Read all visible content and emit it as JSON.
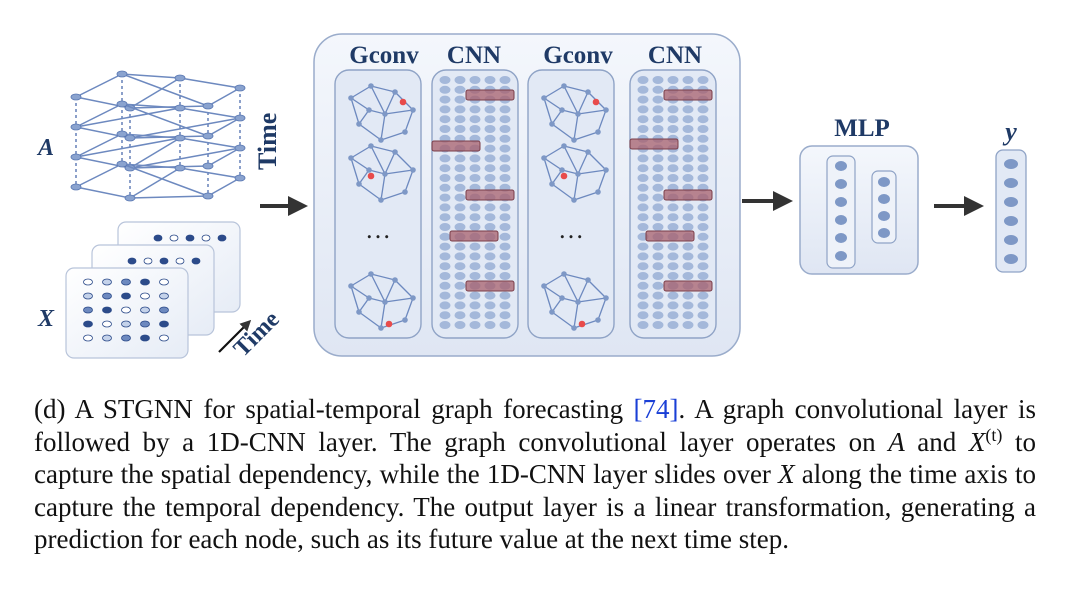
{
  "labels": {
    "a": "A",
    "x": "X",
    "time_top": "Time",
    "time_bottom": "Time",
    "gconv": "Gconv",
    "cnn": "CNN",
    "mlp": "MLP",
    "y": "y",
    "ellipsis": "…"
  },
  "caption": {
    "p1": "(d) A STGNN for spatial-temporal graph forecasting ",
    "cite": "[74]",
    "p2": ". A graph convolutional layer is followed by a 1D-CNN layer. The graph convolutional layer operates on ",
    "var_a": "A",
    "p3": " and ",
    "var_x": "X",
    "sup_t": "(t)",
    "p4": " to capture the spatial dependency, while the 1D-CNN layer slides over ",
    "var_x2": "X",
    "p5": " along the time axis to capture the temporal dependency. The output layer is a linear transformation, generating a prediction for each node, such as its future value at the next time step."
  },
  "colors": {
    "panel_fill": "#e9eef8",
    "panel_stroke": "#9aaccb",
    "node": "#7e98c6",
    "highlight_node": "#e84b4b",
    "kernel": "#a8606c",
    "arrow": "#333333",
    "label": "#1f3a66",
    "cite": "#1a3fd6"
  }
}
